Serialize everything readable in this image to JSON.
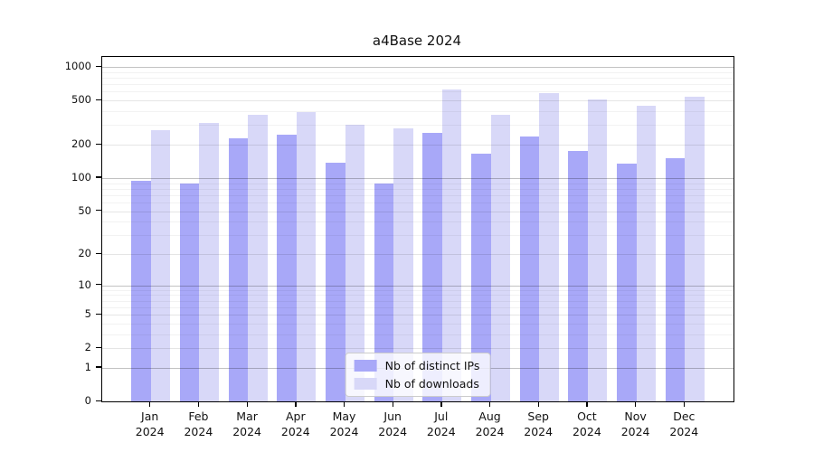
{
  "chart_data": {
    "type": "bar",
    "title": "a4Base 2024",
    "yscale": "log(value+1)",
    "ylim": [
      0,
      1230
    ],
    "yticks": [
      1000,
      500,
      200,
      100,
      50,
      20,
      10,
      5,
      2,
      1,
      0
    ],
    "grid": true,
    "legend_position": "lower center",
    "year": "2024",
    "categories": [
      "Jan",
      "Feb",
      "Mar",
      "Apr",
      "May",
      "Jun",
      "Jul",
      "Aug",
      "Sep",
      "Oct",
      "Nov",
      "Dec"
    ],
    "series": [
      {
        "name": "Nb of distinct IPs",
        "color": "#a8a8f8",
        "values": [
          95,
          89,
          228,
          248,
          138,
          90,
          255,
          165,
          238,
          175,
          135,
          150
        ]
      },
      {
        "name": "Nb of downloads",
        "color": "#d8d8f8",
        "values": [
          270,
          315,
          370,
          390,
          300,
          280,
          630,
          370,
          580,
          510,
          450,
          540
        ]
      }
    ]
  },
  "colors": {
    "frame": "#000000",
    "background": "#ffffff",
    "grid_major": "rgba(0,0,0,0.24)",
    "grid_mid": "rgba(0,0,0,0.10)",
    "grid_minor": "rgba(0,0,0,0.05)"
  }
}
